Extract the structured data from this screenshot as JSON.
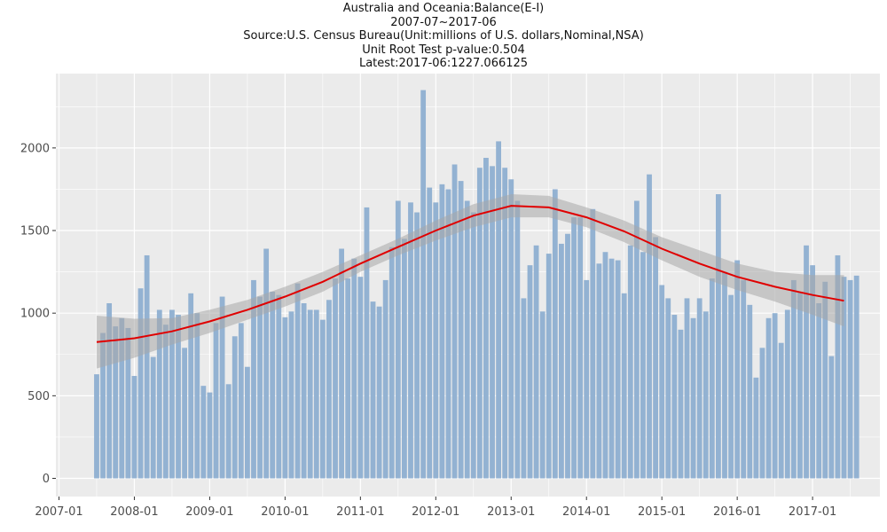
{
  "chart_data": {
    "type": "bar",
    "title_lines": [
      "Australia and Oceania:Balance(E-I)",
      "2007-07~2017-06",
      "Source:U.S. Census Bureau(Unit:millions of U.S. dollars,Nominal,NSA)",
      "Unit Root Test p-value:0.504",
      "Latest:2017-06:1227.066125"
    ],
    "xlabel": "",
    "ylabel": "",
    "x_ticks": [
      "2007-01",
      "2008-01",
      "2009-01",
      "2010-01",
      "2011-01",
      "2012-01",
      "2013-01",
      "2014-01",
      "2015-01",
      "2016-01",
      "2017-01"
    ],
    "y_ticks": [
      0,
      500,
      1000,
      1500,
      2000
    ],
    "ylim": [
      -110,
      2450
    ],
    "grid": true,
    "start_month": "2007-07",
    "values": [
      630,
      880,
      1060,
      920,
      970,
      910,
      620,
      1150,
      1350,
      735,
      1020,
      930,
      1020,
      990,
      790,
      1120,
      1000,
      560,
      520,
      940,
      1100,
      570,
      860,
      940,
      675,
      1200,
      1100,
      1390,
      1130,
      1110,
      975,
      1010,
      1180,
      1060,
      1020,
      1020,
      960,
      1080,
      1210,
      1390,
      1210,
      1330,
      1220,
      1640,
      1070,
      1040,
      1200,
      1400,
      1680,
      1450,
      1670,
      1610,
      2350,
      1760,
      1670,
      1780,
      1750,
      1900,
      1800,
      1680,
      1610,
      1880,
      1940,
      1890,
      2040,
      1880,
      1810,
      1680,
      1090,
      1290,
      1410,
      1010,
      1360,
      1750,
      1420,
      1480,
      1580,
      1580,
      1200,
      1630,
      1300,
      1370,
      1330,
      1320,
      1120,
      1410,
      1680,
      1370,
      1840,
      1460,
      1170,
      1090,
      990,
      900,
      1090,
      970,
      1090,
      1010,
      1210,
      1720,
      1250,
      1110,
      1320,
      1200,
      1050,
      610,
      790,
      970,
      1000,
      820,
      1020,
      1200,
      1130,
      1410,
      1290,
      1060,
      1190,
      740,
      1350,
      1220,
      1200,
      1227.066125
    ],
    "trend": {
      "name": "loess",
      "x_months": [
        0,
        6,
        12,
        18,
        24,
        30,
        36,
        42,
        48,
        54,
        60,
        66,
        72,
        78,
        84,
        90,
        96,
        102,
        108,
        114,
        119
      ],
      "y": [
        825,
        848,
        890,
        950,
        1020,
        1100,
        1190,
        1300,
        1400,
        1500,
        1590,
        1650,
        1640,
        1580,
        1495,
        1390,
        1300,
        1220,
        1160,
        1110,
        1075
      ],
      "band_lower": [
        665,
        730,
        810,
        880,
        960,
        1040,
        1130,
        1250,
        1350,
        1440,
        1520,
        1580,
        1580,
        1520,
        1430,
        1320,
        1220,
        1140,
        1070,
        990,
        920
      ],
      "band_upper": [
        985,
        966,
        970,
        1020,
        1080,
        1160,
        1250,
        1350,
        1450,
        1560,
        1660,
        1720,
        1710,
        1640,
        1560,
        1460,
        1380,
        1300,
        1250,
        1230,
        1230
      ]
    },
    "colors": {
      "bar": "#93b2d2",
      "trend": "#e00000",
      "band": "#a8a8a8",
      "panel": "#ebebeb",
      "grid": "#ffffff",
      "tick_text": "#4d4d4d"
    }
  }
}
